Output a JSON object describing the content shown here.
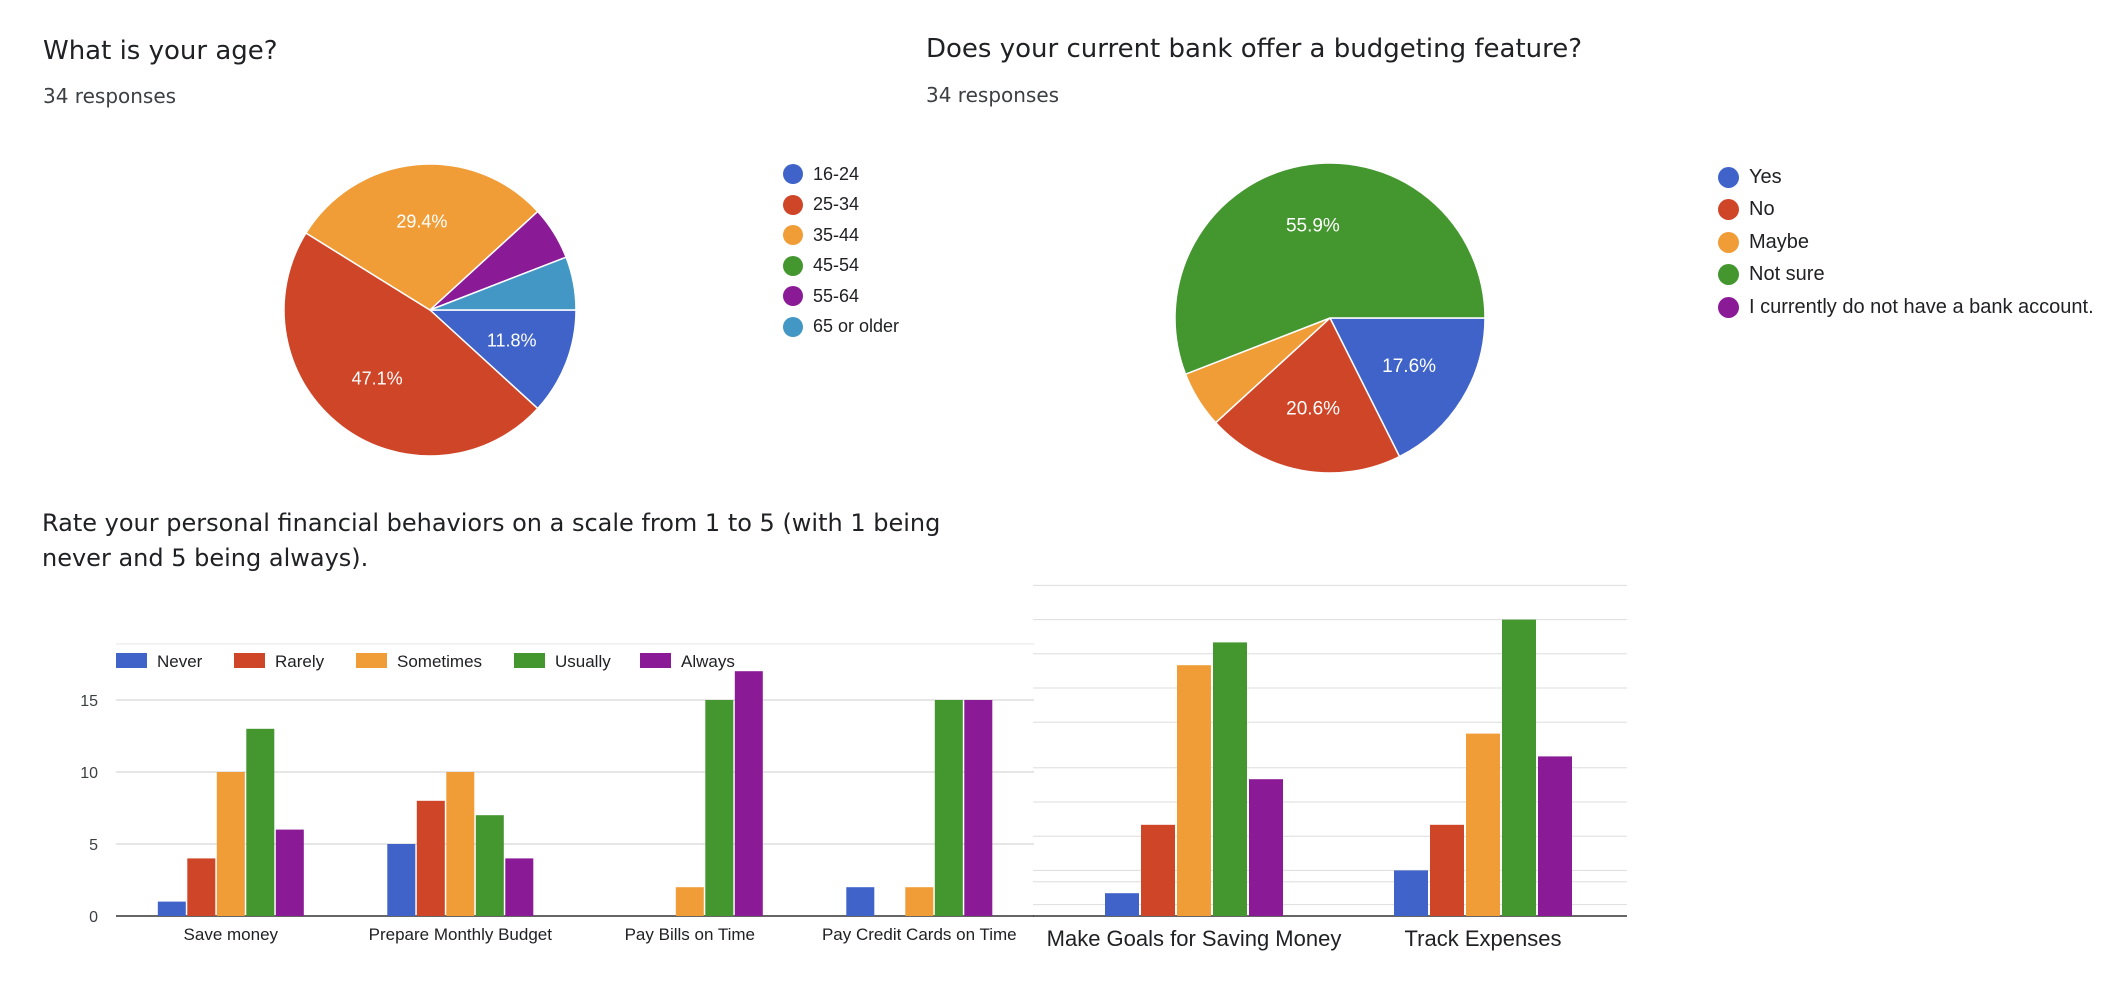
{
  "age_card": {
    "title": "What is your age?",
    "responses": "34 responses"
  },
  "bank_card": {
    "title": "Does your current bank offer a budgeting feature?",
    "responses": "34 responses"
  },
  "behavior_card": {
    "title": "Rate your personal financial behaviors on a scale from 1 to 5 (with 1 being never and 5 being always)."
  },
  "colors": {
    "blue": "#3f63c8",
    "red": "#cf4528",
    "orange": "#f09d38",
    "green": "#44962f",
    "purple": "#8a1a96",
    "teal": "#4397c5"
  },
  "chart_data": [
    {
      "type": "pie",
      "title": "What is your age?",
      "categories": [
        "16-24",
        "25-34",
        "35-44",
        "45-54",
        "55-64",
        "65 or older"
      ],
      "values": [
        11.8,
        47.1,
        29.4,
        0,
        5.9,
        5.9
      ],
      "data_labels": [
        "11.8%",
        "47.1%",
        "29.4%",
        "",
        "",
        ""
      ],
      "colors": [
        "#3f63c8",
        "#cf4528",
        "#f09d38",
        "#44962f",
        "#8a1a96",
        "#4397c5"
      ],
      "legend_position": "right"
    },
    {
      "type": "pie",
      "title": "Does your current bank offer a budgeting feature?",
      "categories": [
        "Yes",
        "No",
        "Maybe",
        "Not sure",
        "I currently do not have a bank account."
      ],
      "values": [
        17.6,
        20.6,
        5.9,
        55.9,
        0
      ],
      "data_labels": [
        "17.6%",
        "20.6%",
        "",
        "55.9%",
        ""
      ],
      "colors": [
        "#3f63c8",
        "#cf4528",
        "#f09d38",
        "#44962f",
        "#8a1a96"
      ],
      "legend_position": "right"
    },
    {
      "type": "bar",
      "title": "Rate your personal financial behaviors on a scale from 1 to 5 (with 1 being never and 5 being always).",
      "categories": [
        "Save money",
        "Prepare Monthly Budget",
        "Pay Bills on Time",
        "Pay Credit Cards on Time"
      ],
      "series": [
        {
          "name": "Never",
          "color": "#3f63c8",
          "values": [
            1,
            5,
            0,
            2
          ]
        },
        {
          "name": "Rarely",
          "color": "#cf4528",
          "values": [
            4,
            8,
            0,
            0
          ]
        },
        {
          "name": "Sometimes",
          "color": "#f09d38",
          "values": [
            10,
            10,
            2,
            2
          ]
        },
        {
          "name": "Usually",
          "color": "#44962f",
          "values": [
            13,
            7,
            15,
            15
          ]
        },
        {
          "name": "Always",
          "color": "#8a1a96",
          "values": [
            6,
            4,
            17,
            15
          ]
        }
      ],
      "yticks": [
        0,
        5,
        10,
        15
      ],
      "ylim": [
        0,
        17
      ],
      "grid": true,
      "legend_position": "top"
    },
    {
      "type": "bar",
      "categories": [
        "Make Goals for Saving Money",
        "Track Expenses"
      ],
      "series": [
        {
          "name": "Never",
          "color": "#3f63c8",
          "values": [
            1,
            2
          ]
        },
        {
          "name": "Rarely",
          "color": "#cf4528",
          "values": [
            4,
            4
          ]
        },
        {
          "name": "Sometimes",
          "color": "#f09d38",
          "values": [
            11,
            8
          ]
        },
        {
          "name": "Usually",
          "color": "#44962f",
          "values": [
            12,
            13
          ]
        },
        {
          "name": "Always",
          "color": "#8a1a96",
          "values": [
            6,
            7
          ]
        }
      ],
      "ylim": [
        0,
        14
      ],
      "grid": true
    }
  ]
}
